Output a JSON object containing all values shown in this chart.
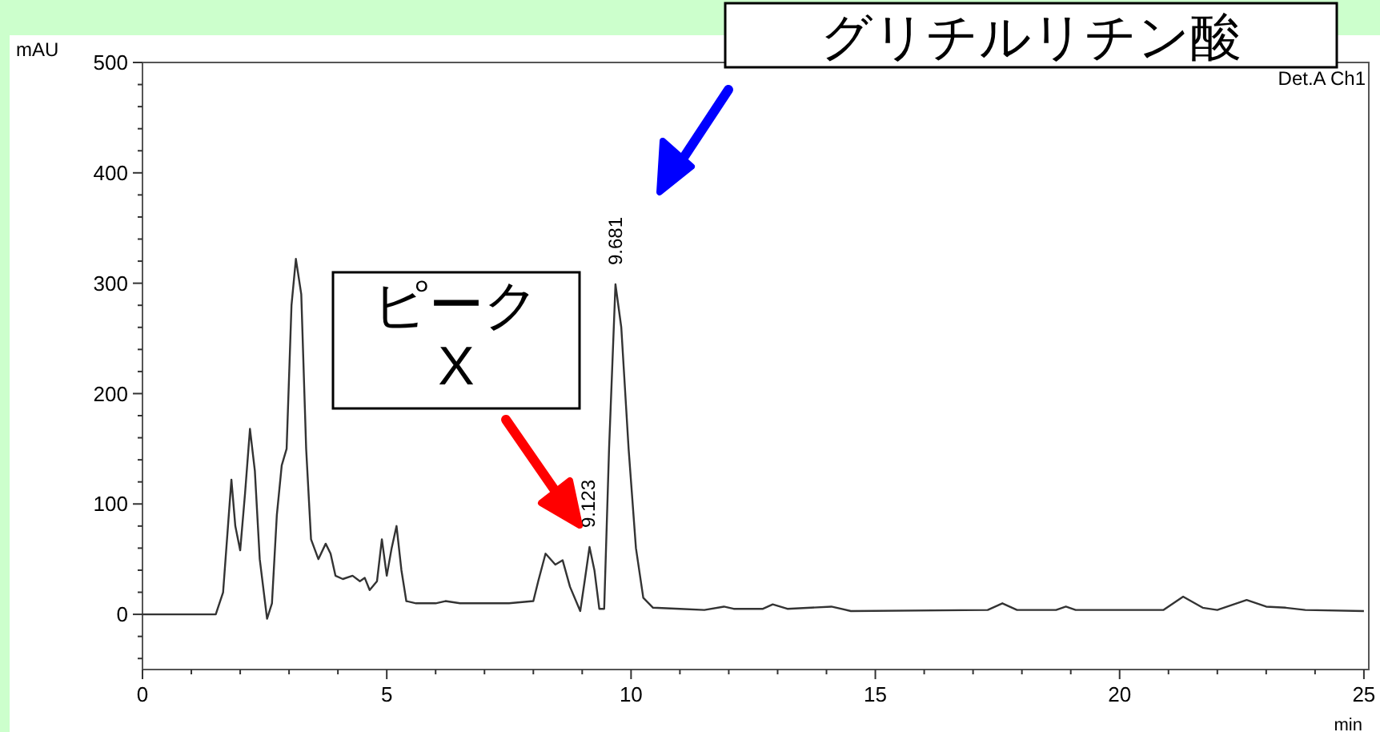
{
  "chart_data": {
    "type": "line",
    "xlabel": "min",
    "ylabel": "mAU",
    "xlim": [
      0,
      25.1
    ],
    "ylim": [
      -50,
      500
    ],
    "xticks": [
      0,
      {
        "value": 1,
        "label": null
      },
      {
        "value": 2,
        "label": null
      },
      {
        "value": 3,
        "label": null
      },
      {
        "value": 4,
        "label": null
      },
      5,
      {
        "value": 6,
        "label": null
      },
      {
        "value": 7,
        "label": null
      },
      {
        "value": 8,
        "label": null
      },
      {
        "value": 9,
        "label": null
      },
      10,
      {
        "value": 11,
        "label": null
      },
      {
        "value": 12,
        "label": null
      },
      {
        "value": 13,
        "label": null
      },
      {
        "value": 14,
        "label": null
      },
      15,
      {
        "value": 16,
        "label": null
      },
      {
        "value": 17,
        "label": null
      },
      {
        "value": 18,
        "label": null
      },
      {
        "value": 19,
        "label": null
      },
      20,
      {
        "value": 21,
        "label": null
      },
      {
        "value": 22,
        "label": null
      },
      {
        "value": 23,
        "label": null
      },
      {
        "value": 24,
        "label": null
      },
      25
    ],
    "yticks": [
      {
        "value": -40,
        "label": null
      },
      {
        "value": -20,
        "label": null
      },
      0,
      {
        "value": 20,
        "label": null
      },
      {
        "value": 40,
        "label": null
      },
      {
        "value": 60,
        "label": null
      },
      {
        "value": 80,
        "label": null
      },
      100,
      {
        "value": 120,
        "label": null
      },
      {
        "value": 140,
        "label": null
      },
      {
        "value": 160,
        "label": null
      },
      {
        "value": 180,
        "label": null
      },
      200,
      {
        "value": 220,
        "label": null
      },
      {
        "value": 240,
        "label": null
      },
      {
        "value": 260,
        "label": null
      },
      {
        "value": 280,
        "label": null
      },
      300,
      {
        "value": 320,
        "label": null
      },
      {
        "value": 340,
        "label": null
      },
      {
        "value": 360,
        "label": null
      },
      {
        "value": 380,
        "label": null
      },
      400,
      {
        "value": 420,
        "label": null
      },
      {
        "value": 440,
        "label": null
      },
      {
        "value": 460,
        "label": null
      },
      {
        "value": 480,
        "label": null
      },
      500
    ],
    "grid": false,
    "marker": "none",
    "line_style": "solid",
    "series": [
      {
        "color": "#333333",
        "x": [
          0,
          1.5,
          1.65,
          1.75,
          1.82,
          1.9,
          2.0,
          2.1,
          2.2,
          2.3,
          2.4,
          2.55,
          2.65,
          2.75,
          2.85,
          2.95,
          3.05,
          3.14,
          3.25,
          3.35,
          3.45,
          3.6,
          3.75,
          3.85,
          3.95,
          4.1,
          4.3,
          4.45,
          4.55,
          4.65,
          4.8,
          4.9,
          5.0,
          5.1,
          5.2,
          5.3,
          5.4,
          5.6,
          6.0,
          6.2,
          6.5,
          7.0,
          7.5,
          8.0,
          8.1,
          8.25,
          8.45,
          8.6,
          8.75,
          8.96,
          9.05,
          9.15,
          9.25,
          9.35,
          9.45,
          9.55,
          9.681,
          9.8,
          9.95,
          10.1,
          10.25,
          10.45,
          11,
          11.5,
          11.9,
          12.1,
          12.7,
          12.9,
          13.2,
          14.1,
          14.5,
          17.3,
          17.6,
          17.9,
          18.7,
          18.9,
          19.1,
          20.9,
          21.3,
          21.7,
          22.0,
          22.6,
          23.0,
          23.4,
          23.8,
          25
        ],
        "values": [
          0,
          0,
          20,
          80,
          122,
          80,
          58,
          110,
          168,
          130,
          50,
          -4,
          10,
          90,
          135,
          150,
          280,
          322,
          290,
          150,
          68,
          50,
          64,
          55,
          35,
          32,
          35,
          30,
          33,
          22,
          30,
          68,
          35,
          60,
          80,
          40,
          12,
          10,
          10,
          12,
          10,
          10,
          10,
          12,
          30,
          55,
          45,
          49,
          25,
          3,
          30,
          61,
          40,
          5,
          5,
          150,
          299,
          260,
          150,
          60,
          15,
          6,
          5,
          4,
          7,
          5,
          5,
          9,
          5,
          7,
          3,
          4,
          10,
          4,
          4,
          7,
          4,
          4,
          16,
          6,
          4,
          13,
          7,
          6,
          4,
          3
        ]
      }
    ],
    "annotations": [
      {
        "text": "9.681",
        "x": 9.681,
        "y": 299
      },
      {
        "text": "9.123",
        "x": 9.123,
        "y": 61
      },
      "Det.A Ch1",
      "ピーク X",
      "グリチルリチン酸"
    ]
  }
}
